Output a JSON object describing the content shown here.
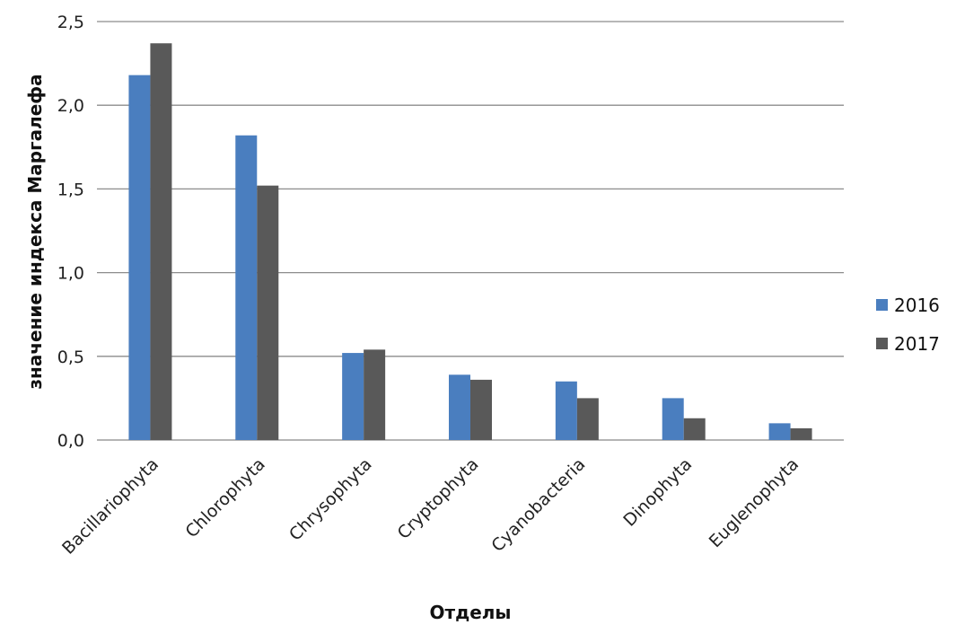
{
  "chart_data": {
    "type": "bar",
    "xlabel": "Отделы",
    "ylabel": "значение индекса Маргалефа",
    "categories": [
      "Bacillariophyta",
      "Chlorophyta",
      "Chrysophyta",
      "Cryptophyta",
      "Cyanobacteria",
      "Dinophyta",
      "Euglenophyta"
    ],
    "series": [
      {
        "name": "2016",
        "color": "#4a7ebf",
        "values": [
          2.18,
          1.82,
          0.52,
          0.39,
          0.35,
          0.25,
          0.1
        ]
      },
      {
        "name": "2017",
        "color": "#595959",
        "values": [
          2.37,
          1.52,
          0.54,
          0.36,
          0.25,
          0.13,
          0.07
        ]
      }
    ],
    "ylim": [
      0,
      2.5
    ],
    "yticks": [
      "0,0",
      "0,5",
      "1,0",
      "1,5",
      "2,0",
      "2,5"
    ],
    "grid": true,
    "legend_position": "right"
  }
}
